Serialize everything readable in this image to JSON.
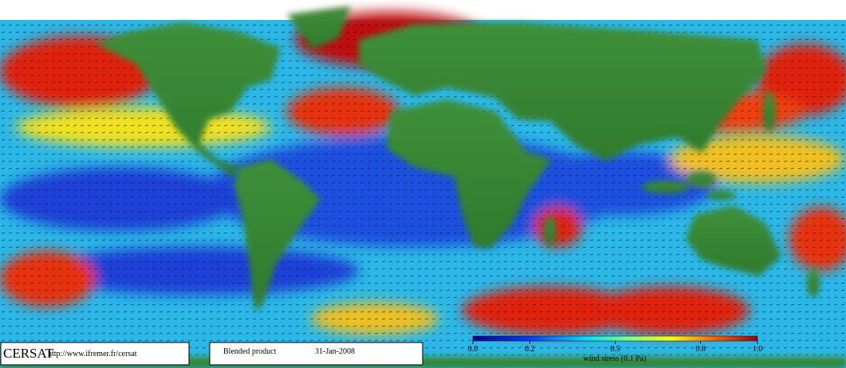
{
  "footer": {
    "logo": "CERSAT",
    "url": "http://www.ifremer.fr/cersat",
    "product": "Blended product",
    "date": "31-Jan-2008"
  },
  "colorbar": {
    "title": "wind stress (0.1 Pa)",
    "lim": [
      0,
      1
    ],
    "ticks": [
      {
        "value": 0,
        "label": "0.0"
      },
      0.2,
      0.5,
      0.8,
      {
        "value": 1,
        "label": "1.0"
      }
    ]
  }
}
